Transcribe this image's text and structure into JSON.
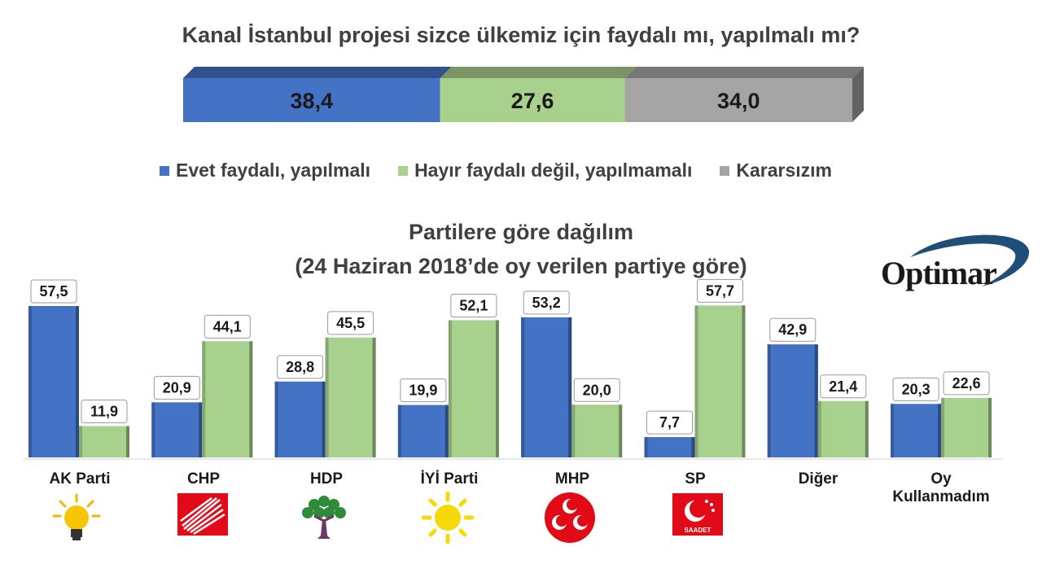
{
  "chart_data": [
    {
      "type": "bar",
      "orientation": "horizontal-stacked",
      "title": "Kanal İstanbul projesi sizce ülkemiz için faydalı mı, yapılmalı mı?",
      "series": [
        {
          "name": "Evet faydalı, yapılmalı",
          "value": 38.4,
          "label": "38,4",
          "color": "#4472C4"
        },
        {
          "name": "Hayır faydalı değil, yapılmamalı",
          "value": 27.6,
          "label": "27,6",
          "color": "#A9D18E"
        },
        {
          "name": "Kararsızım",
          "value": 34.0,
          "label": "34,0",
          "color": "#A5A5A5"
        }
      ],
      "legend": "bottom"
    },
    {
      "type": "bar",
      "title": "Partilere göre dağılım",
      "subtitle": "(24 Haziran 2018’de oy verilen partiye göre)",
      "categories": [
        "AK Parti",
        "CHP",
        "HDP",
        "İYİ Parti",
        "MHP",
        "SP",
        "Diğer",
        "Oy Kullanmadım"
      ],
      "series": [
        {
          "name": "Evet faydalı, yapılmalı",
          "color": "#4472C4",
          "values": [
            57.5,
            20.9,
            28.8,
            19.9,
            53.2,
            7.7,
            42.9,
            20.3
          ],
          "labels": [
            "57,5",
            "20,9",
            "28,8",
            "19,9",
            "53,2",
            "7,7",
            "42,9",
            "20,3"
          ]
        },
        {
          "name": "Hayır faydalı değil, yapılmamalı",
          "color": "#A9D18E",
          "values": [
            11.9,
            44.1,
            45.5,
            52.1,
            20.0,
            57.7,
            21.4,
            22.6
          ],
          "labels": [
            "11,9",
            "44,1",
            "45,5",
            "52,1",
            "20,0",
            "57,7",
            "21,4",
            "22,6"
          ]
        }
      ],
      "ylim": [
        0,
        60
      ],
      "grid": false
    }
  ],
  "brand": {
    "logo_text": "Optimar"
  },
  "emblems": [
    "ak-parti-bulb-icon",
    "chp-six-arrows-icon",
    "hdp-tree-icon",
    "iyi-sun-icon",
    "mhp-crescents-icon",
    "saadet-crescent-star-icon"
  ],
  "emblem_texts": {
    "saadet": "SAADET"
  },
  "colors": {
    "evet": "#4472C4",
    "hayir": "#A9D18E",
    "kararsiz": "#A5A5A5",
    "text": "#404040"
  }
}
